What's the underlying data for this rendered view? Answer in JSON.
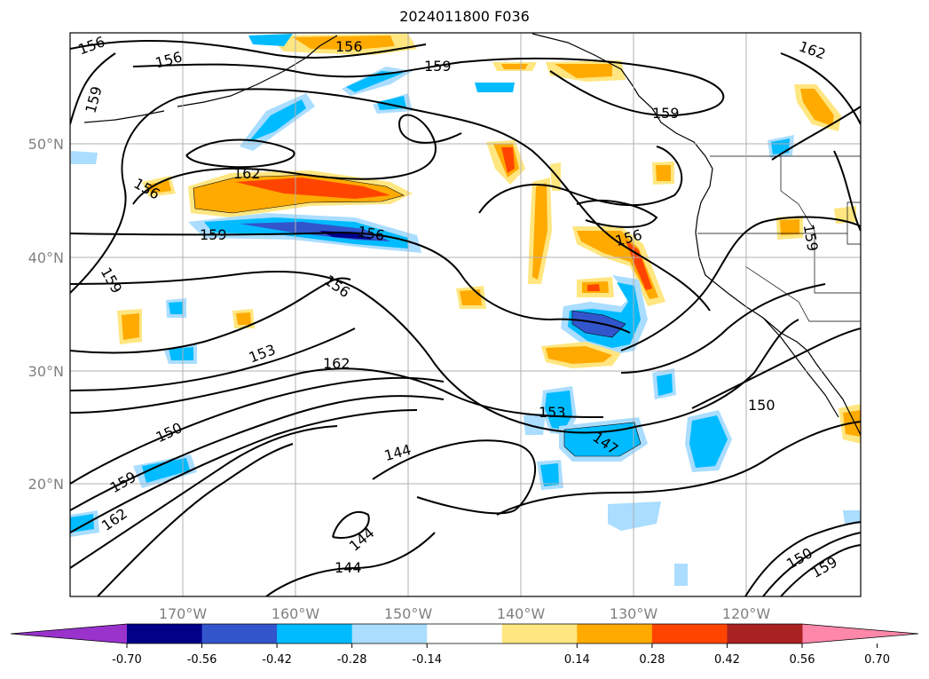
{
  "title": "2024011800 F036",
  "lat_labels": [
    "50°N",
    "40°N",
    "30°N",
    "20°N"
  ],
  "lon_labels": [
    "170°W",
    "160°W",
    "150°W",
    "140°W",
    "130°W",
    "120°W"
  ],
  "contour_labels": [
    "156",
    "156",
    "159",
    "156",
    "159",
    "162",
    "159",
    "162",
    "156",
    "159",
    "156",
    "156",
    "159",
    "159",
    "156",
    "153",
    "162",
    "150",
    "153",
    "150",
    "144",
    "159",
    "162",
    "144",
    "144",
    "147",
    "150",
    "159"
  ],
  "colorbar": {
    "tick_labels": [
      "-0.70",
      "-0.56",
      "-0.42",
      "-0.28",
      "-0.14",
      "0.14",
      "0.28",
      "0.42",
      "0.56",
      "0.70"
    ],
    "colors": [
      "#9933cc",
      "#000088",
      "#3355cc",
      "#00bbff",
      "#aaddff",
      "#ffffff",
      "#ffe680",
      "#ffaa00",
      "#ff4400",
      "#aa2222",
      "#ff88aa"
    ]
  },
  "colors": {
    "coastline": "#000000",
    "contour": "#000000",
    "grid": "#b0b0b0",
    "axis_label": "#808080"
  }
}
